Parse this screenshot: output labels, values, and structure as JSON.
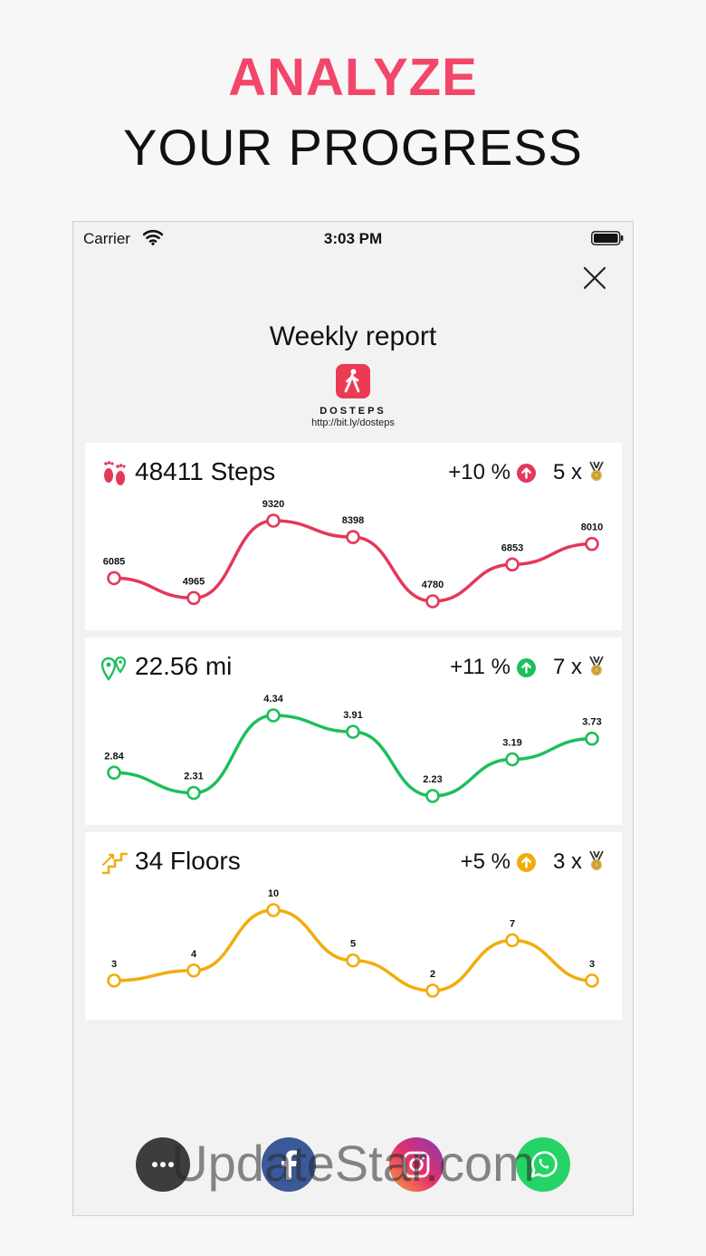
{
  "headline": {
    "line1": "ANALYZE",
    "line2": "YOUR PROGRESS",
    "accent": "#f2476a"
  },
  "status_bar": {
    "carrier": "Carrier",
    "time": "3:03 PM"
  },
  "report": {
    "title": "Weekly report",
    "app_name": "DOSTEPS",
    "app_link": "http://bit.ly/dosteps"
  },
  "cards": [
    {
      "id": "steps",
      "value": "48411 Steps",
      "change": "+10 %",
      "medals": "5 x",
      "color": "#e4385a",
      "icon": "footprints-icon",
      "chart_data": {
        "type": "line",
        "values": [
          6085,
          4965,
          9320,
          8398,
          4780,
          6853,
          8010
        ],
        "labels": [
          "6085",
          "4965",
          "9320",
          "8398",
          "4780",
          "6853",
          "8010"
        ]
      }
    },
    {
      "id": "distance",
      "value": "22.56 mi",
      "change": "+11 %",
      "medals": "7 x",
      "color": "#1dbf5a",
      "icon": "map-pin-icon",
      "chart_data": {
        "type": "line",
        "values": [
          2.84,
          2.31,
          4.34,
          3.91,
          2.23,
          3.19,
          3.73
        ],
        "labels": [
          "2.84",
          "2.31",
          "4.34",
          "3.91",
          "2.23",
          "3.19",
          "3.73"
        ]
      }
    },
    {
      "id": "floors",
      "value": "34 Floors",
      "change": "+5 %",
      "medals": "3 x",
      "color": "#f2ac0e",
      "icon": "stairs-icon",
      "chart_data": {
        "type": "line",
        "values": [
          3,
          4,
          10,
          5,
          2,
          7,
          3
        ],
        "labels": [
          "3",
          "4",
          "10",
          "5",
          "2",
          "7",
          "3"
        ]
      }
    }
  ],
  "share": [
    {
      "name": "more",
      "glyph": "•••",
      "color": "#3d3d3d"
    },
    {
      "name": "facebook",
      "glyph": "f",
      "color": "#3b5998"
    },
    {
      "name": "instagram",
      "glyph": "",
      "color": "#c13584"
    },
    {
      "name": "whatsapp",
      "glyph": "",
      "color": "#25d366"
    }
  ],
  "watermark": "UpdateStar.com"
}
